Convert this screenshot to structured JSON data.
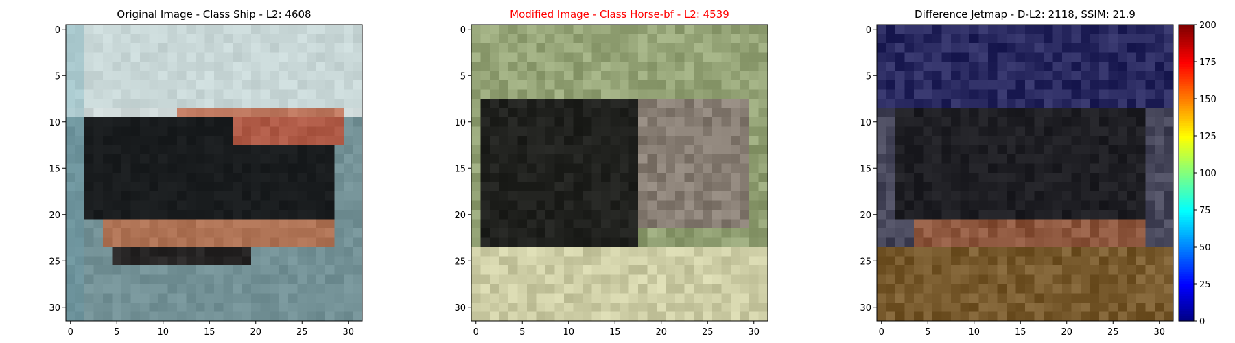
{
  "figure": {
    "colors": {
      "title_default": "#000000",
      "title_highlight": "#ff0000"
    }
  },
  "panels": [
    {
      "title": "Original Image - Class Ship - L2: 4608",
      "title_color": "#000000",
      "theme": "ship"
    },
    {
      "title": "Modified Image - Class Horse-bf - L2: 4539",
      "title_color": "#ff0000",
      "theme": "horse"
    },
    {
      "title": "Difference Jetmap - D-L2: 2118, SSIM: 21.9",
      "title_color": "#000000",
      "theme": "diff"
    }
  ],
  "colorbar": {
    "ticks": [
      "0",
      "25",
      "50",
      "75",
      "100",
      "125",
      "150",
      "175",
      "200"
    ],
    "range": [
      0,
      200
    ],
    "colormap": "jet"
  },
  "chart_data": [
    {
      "type": "heatmap",
      "title": "Original Image - Class Ship - L2: 4608",
      "xlabel": "",
      "ylabel": "",
      "xlim": [
        -0.5,
        31.5
      ],
      "ylim": [
        31.5,
        -0.5
      ],
      "xticks": [
        0,
        5,
        10,
        15,
        20,
        25,
        30
      ],
      "yticks": [
        0,
        5,
        10,
        15,
        20,
        25,
        30
      ],
      "grid": false
    },
    {
      "type": "heatmap",
      "title": "Modified Image - Class Horse-bf - L2: 4539",
      "xlabel": "",
      "ylabel": "",
      "xlim": [
        -0.5,
        31.5
      ],
      "ylim": [
        31.5,
        -0.5
      ],
      "xticks": [
        0,
        5,
        10,
        15,
        20,
        25,
        30
      ],
      "yticks": [
        0,
        5,
        10,
        15,
        20,
        25,
        30
      ],
      "grid": false
    },
    {
      "type": "heatmap",
      "title": "Difference Jetmap - D-L2: 2118, SSIM: 21.9",
      "xlabel": "",
      "ylabel": "",
      "xlim": [
        -0.5,
        31.5
      ],
      "ylim": [
        31.5,
        -0.5
      ],
      "xticks": [
        0,
        5,
        10,
        15,
        20,
        25,
        30
      ],
      "yticks": [
        0,
        5,
        10,
        15,
        20,
        25,
        30
      ],
      "grid": false,
      "colorbar": {
        "min": 0,
        "max": 200,
        "ticks": [
          0,
          25,
          50,
          75,
          100,
          125,
          150,
          175,
          200
        ],
        "colormap": "jet"
      }
    }
  ]
}
